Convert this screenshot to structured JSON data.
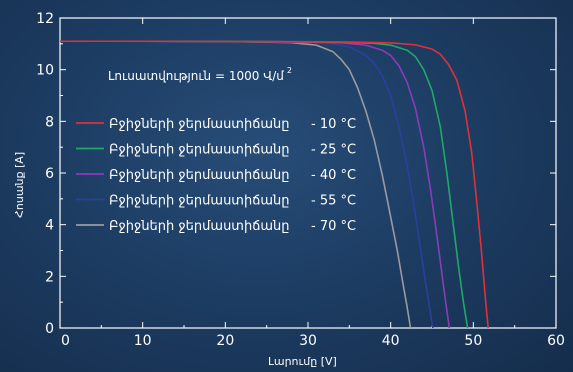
{
  "chart_data": {
    "type": "line",
    "xlabel": "Լարումը [V]",
    "ylabel": "Հոսանք [A]",
    "xlim": [
      0,
      60
    ],
    "ylim": [
      0,
      12
    ],
    "xticks": [
      "0",
      "10",
      "20",
      "30",
      "40",
      "50",
      "60"
    ],
    "yticks": [
      "0",
      "2",
      "4",
      "6",
      "8",
      "10",
      "12"
    ],
    "annotation": {
      "text": "Լուսատվություն = 1000 Վ/մ",
      "sup": "2"
    },
    "grid": false,
    "legend_position": "left-center",
    "series": [
      {
        "name": "Բջիջների ջերմաստիճանը",
        "temp": "- 10 °C",
        "color": "#e0303a",
        "x": [
          0,
          10,
          20,
          30,
          35,
          40,
          43,
          45,
          46,
          47,
          48,
          49,
          49.8,
          50.5,
          51,
          51.5,
          51.8
        ],
        "y": [
          11.1,
          11.1,
          11.09,
          11.08,
          11.07,
          11.04,
          10.96,
          10.8,
          10.6,
          10.2,
          9.6,
          8.4,
          6.8,
          4.6,
          2.9,
          1.0,
          0
        ]
      },
      {
        "name": "Բջիջների ջերմաստիճանը",
        "temp": "- 25 °C",
        "color": "#1fa86a",
        "x": [
          0,
          10,
          20,
          30,
          35,
          38,
          40,
          42,
          43,
          44,
          45,
          46,
          46.8,
          47.5,
          48.2,
          48.8,
          49.3
        ],
        "y": [
          11.1,
          11.1,
          11.09,
          11.08,
          11.06,
          11.02,
          10.95,
          10.75,
          10.5,
          10.0,
          9.2,
          7.8,
          6.0,
          4.2,
          2.4,
          1.0,
          0
        ]
      },
      {
        "name": "Բջիջների ջերմաստիճանը",
        "temp": "- 40 °C",
        "color": "#8a3cb8",
        "x": [
          0,
          10,
          20,
          30,
          34,
          37,
          39,
          40,
          41,
          42,
          43,
          44,
          44.8,
          45.5,
          46.2,
          46.7,
          47.1
        ],
        "y": [
          11.1,
          11.1,
          11.09,
          11.07,
          11.04,
          10.95,
          10.75,
          10.55,
          10.15,
          9.5,
          8.5,
          7.0,
          5.4,
          3.8,
          2.1,
          0.9,
          0
        ]
      },
      {
        "name": "Բջիջների ջերմաստիճանը",
        "temp": "- 55 °C",
        "color": "#2b3fa0",
        "x": [
          0,
          10,
          20,
          30,
          33,
          35,
          37,
          38,
          39,
          40,
          41,
          42,
          42.8,
          43.5,
          44.2,
          44.7,
          45.1
        ],
        "y": [
          11.1,
          11.1,
          11.09,
          11.06,
          11.0,
          10.88,
          10.55,
          10.25,
          9.75,
          9.0,
          7.8,
          6.3,
          4.8,
          3.3,
          1.8,
          0.8,
          0
        ]
      },
      {
        "name": "Բջիջների ջերմաստիճանը",
        "temp": "- 70 °C",
        "color": "#9a9aa0",
        "x": [
          0,
          10,
          20,
          28,
          31,
          33,
          34,
          35,
          36,
          37,
          38,
          39,
          40,
          40.8,
          41.5,
          42.0,
          42.4
        ],
        "y": [
          11.1,
          11.1,
          11.09,
          11.05,
          10.95,
          10.7,
          10.4,
          10.0,
          9.3,
          8.4,
          7.3,
          5.9,
          4.3,
          3.0,
          1.7,
          0.8,
          0
        ]
      }
    ]
  }
}
